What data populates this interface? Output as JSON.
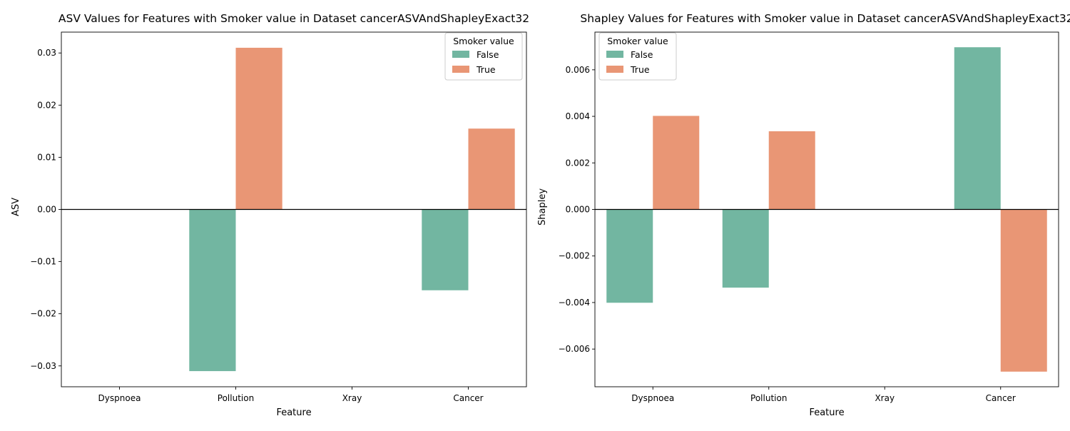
{
  "chart_data": [
    {
      "type": "bar",
      "title": "ASV Values for Features with Smoker value in Dataset cancerASVAndShapleyExact32",
      "xlabel": "Feature",
      "ylabel": "ASV",
      "categories": [
        "Dyspnoea",
        "Pollution",
        "Xray",
        "Cancer"
      ],
      "series": [
        {
          "name": "False",
          "color": "#72b6a1",
          "values": [
            0,
            -0.031,
            0,
            -0.0155
          ]
        },
        {
          "name": "True",
          "color": "#e99675",
          "values": [
            0,
            0.031,
            0,
            0.0155
          ]
        }
      ],
      "ylim": [
        -0.034,
        0.034
      ],
      "yticks": [
        -0.03,
        -0.02,
        -0.01,
        0.0,
        0.01,
        0.02,
        0.03
      ],
      "ytick_labels": [
        "−0.03",
        "−0.02",
        "−0.01",
        "0.00",
        "0.01",
        "0.02",
        "0.03"
      ],
      "legend": {
        "title": "Smoker value",
        "placement": "top-right"
      },
      "zero_line": true,
      "grid": false
    },
    {
      "type": "bar",
      "title": "Shapley Values for Features with Smoker value in Dataset cancerASVAndShapleyExact32",
      "xlabel": "Feature",
      "ylabel": "Shapley",
      "categories": [
        "Dyspnoea",
        "Pollution",
        "Xray",
        "Cancer"
      ],
      "series": [
        {
          "name": "False",
          "color": "#72b6a1",
          "values": [
            -0.00401,
            -0.00336,
            0,
            0.00697
          ]
        },
        {
          "name": "True",
          "color": "#e99675",
          "values": [
            0.00402,
            0.00336,
            0,
            -0.00697
          ]
        }
      ],
      "ylim": [
        -0.00762,
        0.00762
      ],
      "yticks": [
        -0.006,
        -0.004,
        -0.002,
        0.0,
        0.002,
        0.004,
        0.006
      ],
      "ytick_labels": [
        "−0.006",
        "−0.004",
        "−0.002",
        "0.000",
        "0.002",
        "0.004",
        "0.006"
      ],
      "legend": {
        "title": "Smoker value",
        "placement": "top-left"
      },
      "zero_line": true,
      "grid": false
    }
  ]
}
